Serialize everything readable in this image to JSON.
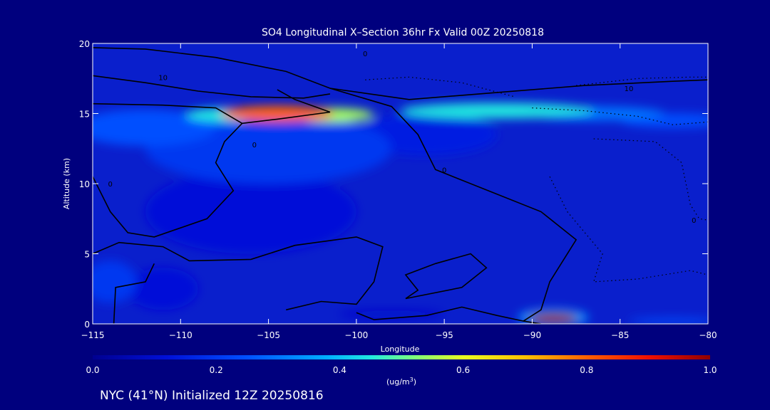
{
  "chart_data": {
    "type": "heatmap",
    "title": "SO4 Longitudinal X–Section 36hr  Fx Valid 00Z 20250818",
    "xlabel": "Longitude",
    "ylabel": "Altitude (km)",
    "xlim": [
      -115,
      -80
    ],
    "ylim": [
      0,
      20
    ],
    "xticks": [
      -115,
      -110,
      -105,
      -100,
      -95,
      -90,
      -85,
      -80
    ],
    "xtick_labels": [
      "−115",
      "−110",
      "−105",
      "−100",
      "−95",
      "−90",
      "−85",
      "−80"
    ],
    "yticks": [
      0,
      5,
      10,
      15,
      20
    ],
    "ytick_labels": [
      "0",
      "5",
      "10",
      "15",
      "20"
    ],
    "colorbar": {
      "min": 0.0,
      "max": 1.0,
      "ticks": [
        0.0,
        0.2,
        0.4,
        0.6,
        0.8,
        1.0
      ],
      "tick_labels": [
        "0.0",
        "0.2",
        "0.4",
        "0.6",
        "0.8",
        "1.0"
      ],
      "units": "(ug/m",
      "units_sup": "3",
      "units_close": ")"
    },
    "field_blobs": [
      {
        "lon": -104.5,
        "alt": 15.0,
        "rx": 3.2,
        "ry": 0.55,
        "value": 0.8
      },
      {
        "lon": -101.5,
        "alt": 14.9,
        "rx": 2.5,
        "ry": 0.5,
        "value": 0.55
      },
      {
        "lon": -107.5,
        "alt": 14.9,
        "rx": 2.2,
        "ry": 0.5,
        "value": 0.45
      },
      {
        "lon": -92.0,
        "alt": 15.2,
        "rx": 5.5,
        "ry": 0.55,
        "value": 0.45
      },
      {
        "lon": -86.5,
        "alt": 15.0,
        "rx": 4.0,
        "ry": 0.5,
        "value": 0.3
      },
      {
        "lon": -82.0,
        "alt": 14.5,
        "rx": 3.0,
        "ry": 0.5,
        "value": 0.25
      },
      {
        "lon": -112.0,
        "alt": 14.0,
        "rx": 4.0,
        "ry": 1.3,
        "value": 0.25
      },
      {
        "lon": -105.0,
        "alt": 12.5,
        "rx": 7.0,
        "ry": 2.5,
        "value": 0.2
      },
      {
        "lon": -96.0,
        "alt": 13.5,
        "rx": 4.0,
        "ry": 1.5,
        "value": 0.15
      },
      {
        "lon": -106.0,
        "alt": 8.0,
        "rx": 6.0,
        "ry": 3.0,
        "value": 0.12
      },
      {
        "lon": -114.0,
        "alt": 3.0,
        "rx": 1.5,
        "ry": 1.5,
        "value": 0.2
      },
      {
        "lon": -111.0,
        "alt": 2.5,
        "rx": 2.0,
        "ry": 1.5,
        "value": 0.12
      },
      {
        "lon": -88.8,
        "alt": 0.4,
        "rx": 1.4,
        "ry": 0.35,
        "value": 1.0
      },
      {
        "lon": -88.8,
        "alt": 0.45,
        "rx": 2.0,
        "ry": 0.6,
        "value": 0.35
      },
      {
        "lon": -82.0,
        "alt": 0.2,
        "rx": 2.5,
        "ry": 0.2,
        "value": 0.25
      },
      {
        "lon": -98.0,
        "alt": 0.7,
        "rx": 3.0,
        "ry": 0.3,
        "value": 0.1
      }
    ],
    "contours": [
      {
        "style": "solid",
        "points": [
          [
            -115,
            19.7
          ],
          [
            -112,
            19.6
          ],
          [
            -108,
            19.0
          ],
          [
            -104,
            18.0
          ],
          [
            -101.5,
            16.8
          ],
          [
            -97,
            16.0
          ],
          [
            -93,
            16.4
          ],
          [
            -87,
            17.0
          ],
          [
            -82,
            17.3
          ],
          [
            -80,
            17.4
          ]
        ]
      },
      {
        "style": "solid",
        "points": [
          [
            -115,
            17.7
          ],
          [
            -112,
            17.2
          ],
          [
            -109,
            16.6
          ],
          [
            -106,
            16.2
          ],
          [
            -103,
            16.1
          ],
          [
            -101.5,
            16.4
          ]
        ]
      },
      {
        "style": "solid",
        "points": [
          [
            -115,
            15.7
          ],
          [
            -111,
            15.6
          ],
          [
            -108,
            15.4
          ],
          [
            -106.5,
            14.3
          ],
          [
            -107.5,
            13.0
          ],
          [
            -108,
            11.5
          ],
          [
            -107,
            9.5
          ],
          [
            -108.5,
            7.5
          ],
          [
            -111.5,
            6.2
          ],
          [
            -113,
            6.5
          ],
          [
            -114,
            8.0
          ],
          [
            -115,
            10.5
          ]
        ]
      },
      {
        "style": "solid",
        "points": [
          [
            -115,
            5.0
          ],
          [
            -113.5,
            5.8
          ],
          [
            -111,
            5.5
          ],
          [
            -109.5,
            4.5
          ],
          [
            -106,
            4.6
          ],
          [
            -103.5,
            5.6
          ],
          [
            -100,
            6.2
          ],
          [
            -98.5,
            5.5
          ],
          [
            -99,
            3.0
          ],
          [
            -100,
            1.4
          ],
          [
            -102,
            1.6
          ],
          [
            -104,
            1.0
          ]
        ]
      },
      {
        "style": "solid",
        "points": [
          [
            -113.8,
            0.0
          ],
          [
            -113.7,
            2.6
          ],
          [
            -112,
            3.0
          ],
          [
            -111.5,
            4.3
          ]
        ]
      },
      {
        "style": "solid",
        "points": [
          [
            -97.2,
            1.8
          ],
          [
            -94,
            2.6
          ],
          [
            -92.6,
            4.0
          ],
          [
            -93.5,
            5.0
          ],
          [
            -95.5,
            4.3
          ],
          [
            -97.2,
            3.5
          ],
          [
            -96.5,
            2.4
          ],
          [
            -97.2,
            1.8
          ]
        ]
      },
      {
        "style": "solid",
        "points": [
          [
            -100,
            0.8
          ],
          [
            -99,
            0.3
          ],
          [
            -96,
            0.6
          ],
          [
            -94,
            1.2
          ],
          [
            -92,
            0.6
          ],
          [
            -90.5,
            0.2
          ],
          [
            -89.5,
            0.0
          ]
        ]
      },
      {
        "style": "solid",
        "points": [
          [
            -104.5,
            16.7
          ],
          [
            -103.5,
            16.0
          ],
          [
            -101.5,
            15.1
          ],
          [
            -104.5,
            14.6
          ],
          [
            -106.5,
            14.3
          ]
        ]
      },
      {
        "style": "solid",
        "points": [
          [
            -101.5,
            16.8
          ],
          [
            -98,
            15.5
          ],
          [
            -96.5,
            13.5
          ],
          [
            -95.5,
            11.0
          ],
          [
            -92.5,
            9.5
          ],
          [
            -89.5,
            8.0
          ],
          [
            -87.5,
            6.0
          ],
          [
            -89,
            3.0
          ],
          [
            -89.5,
            1.0
          ],
          [
            -90.5,
            0.2
          ]
        ]
      },
      {
        "style": "dotted",
        "points": [
          [
            -99.5,
            17.4
          ],
          [
            -97,
            17.6
          ],
          [
            -94,
            17.2
          ],
          [
            -91,
            16.2
          ]
        ]
      },
      {
        "style": "dotted",
        "points": [
          [
            -87.5,
            17.0
          ],
          [
            -84,
            17.5
          ],
          [
            -81,
            17.6
          ],
          [
            -80,
            17.6
          ]
        ]
      },
      {
        "style": "dotted",
        "points": [
          [
            -90,
            15.4
          ],
          [
            -87,
            15.2
          ],
          [
            -84,
            14.8
          ],
          [
            -82,
            14.2
          ],
          [
            -80,
            14.4
          ]
        ]
      },
      {
        "style": "dotted",
        "points": [
          [
            -86.5,
            13.2
          ],
          [
            -83,
            13.0
          ],
          [
            -81.5,
            11.5
          ],
          [
            -81,
            8.5
          ],
          [
            -80.5,
            7.5
          ],
          [
            -80,
            7.4
          ]
        ]
      },
      {
        "style": "dotted",
        "points": [
          [
            -89,
            10.5
          ],
          [
            -88,
            8.0
          ],
          [
            -86,
            5.0
          ],
          [
            -86.5,
            3.0
          ],
          [
            -84,
            3.2
          ],
          [
            -81,
            3.8
          ],
          [
            -80,
            3.5
          ]
        ]
      }
    ],
    "contour_labels": [
      {
        "text": "0",
        "lon": -99.5,
        "alt": 19.3
      },
      {
        "text": "10",
        "lon": -111.0,
        "alt": 17.6
      },
      {
        "text": "10",
        "lon": -84.5,
        "alt": 16.8
      },
      {
        "text": "0",
        "lon": -114.0,
        "alt": 10.0
      },
      {
        "text": "0",
        "lon": -105.8,
        "alt": 12.8
      },
      {
        "text": "0",
        "lon": -95.0,
        "alt": 11.0
      },
      {
        "text": "0",
        "lon": -80.8,
        "alt": 7.4
      }
    ]
  },
  "footer": {
    "text": "NYC (41°N) Initialized 12Z 20250816"
  }
}
